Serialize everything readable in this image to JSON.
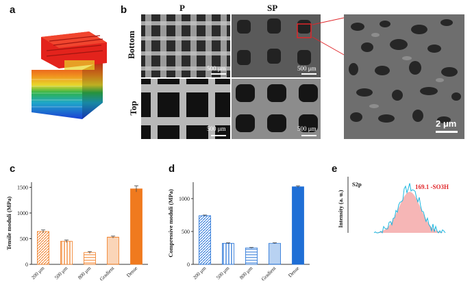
{
  "panels": {
    "a": {
      "letter": "a"
    },
    "b": {
      "letter": "b",
      "columns": [
        "P",
        "SP"
      ],
      "rows": [
        "Bottom",
        "Top"
      ],
      "scale_500": "500 μm",
      "scale_2": "2 μm"
    },
    "c": {
      "letter": "c"
    },
    "d": {
      "letter": "d"
    },
    "e": {
      "letter": "e"
    }
  },
  "colors": {
    "tensile": "#f07a1e",
    "compressive": "#1f6fd6",
    "xps_fill": "#f4a9a9",
    "xps_line": "#19b6e0",
    "annotation_red": "#e0262a"
  },
  "chart_data": [
    {
      "id": "c",
      "type": "bar",
      "ylabel": "Tensile moduli (MPa)",
      "categories": [
        "200 μm",
        "500 μm",
        "800 μm",
        "Gradient",
        "Dense"
      ],
      "values": [
        640,
        450,
        230,
        530,
        1470
      ],
      "errors": [
        30,
        25,
        20,
        20,
        60
      ],
      "ylim": [
        0,
        1600
      ],
      "yticks": [
        "0",
        "500",
        "1000",
        "1500"
      ]
    },
    {
      "id": "d",
      "type": "bar",
      "ylabel": "Compressive moduli (MPa)",
      "categories": [
        "200 μm",
        "500 μm",
        "800 μm",
        "Gradient",
        "Dense"
      ],
      "values": [
        740,
        320,
        250,
        320,
        1180
      ],
      "errors": [
        10,
        8,
        8,
        8,
        15
      ],
      "ylim": [
        0,
        1250
      ],
      "yticks": [
        "0",
        "500",
        "1000"
      ]
    },
    {
      "id": "e",
      "type": "line",
      "ylabel": "Intensity (a. u.)",
      "series_label": "S2p",
      "annotation": "169.1 -SO3H"
    }
  ]
}
